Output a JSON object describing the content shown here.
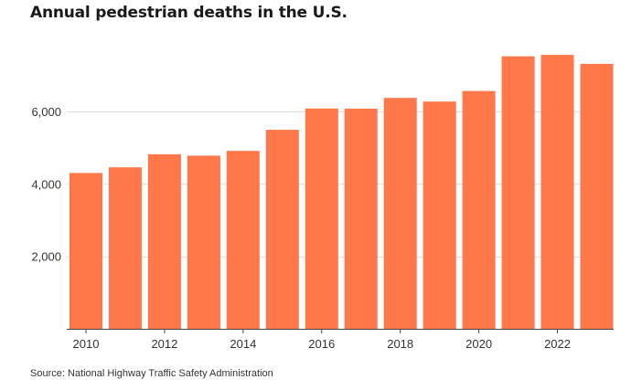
{
  "chart_data": {
    "type": "bar",
    "title": "Annual pedestrian deaths in the U.S.",
    "xlabel": "",
    "ylabel": "",
    "categories": [
      "2010",
      "2011",
      "2012",
      "2013",
      "2014",
      "2015",
      "2016",
      "2017",
      "2018",
      "2019",
      "2020",
      "2021",
      "2022",
      "2023"
    ],
    "values": [
      4302,
      4457,
      4818,
      4779,
      4910,
      5494,
      6080,
      6075,
      6374,
      6272,
      6565,
      7522,
      7560,
      7314
    ],
    "x_tick_labels": [
      "2010",
      "2012",
      "2014",
      "2016",
      "2018",
      "2020",
      "2022"
    ],
    "y_tick_values": [
      2000,
      4000,
      6000
    ],
    "y_tick_labels": [
      "2,000",
      "4,000",
      "6,000"
    ],
    "ylim": [
      0,
      8000
    ],
    "grid": true,
    "legend": "none",
    "bar_color": "#ff7849",
    "source": "Source: National Highway Traffic Safety Administration"
  }
}
